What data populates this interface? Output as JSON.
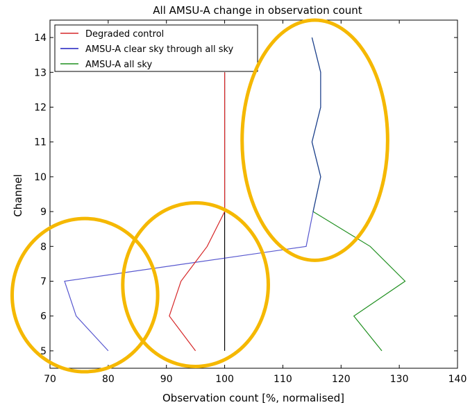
{
  "chart_data": {
    "type": "line",
    "title": "All AMSU-A change in observation count",
    "xlabel": "Observation count [%, normalised]",
    "ylabel": "Channel",
    "xlim": [
      70,
      140
    ],
    "ylim": [
      4.5,
      14.5
    ],
    "xticks": [
      70,
      80,
      90,
      100,
      110,
      120,
      130,
      140
    ],
    "yticks": [
      5,
      6,
      7,
      8,
      9,
      10,
      11,
      12,
      13,
      14
    ],
    "grid": false,
    "legend_position": "top-left",
    "reference_line": {
      "x": 100,
      "y_range": [
        5,
        13
      ],
      "color": "#000000"
    },
    "series": [
      {
        "name": "Degraded control",
        "color": "#d62728",
        "points": [
          [
            95,
            5
          ],
          [
            90.5,
            6
          ],
          [
            92.5,
            7
          ],
          [
            97,
            8
          ],
          [
            100,
            9
          ],
          [
            100,
            10
          ],
          [
            100,
            11
          ],
          [
            100,
            12
          ],
          [
            100,
            13
          ]
        ]
      },
      {
        "name": "AMSU-A clear sky through all sky",
        "color": "#1f1fbf",
        "points": [
          [
            80,
            5
          ],
          [
            74.5,
            6
          ],
          [
            72.5,
            7
          ],
          [
            114,
            8
          ],
          [
            115.2,
            9
          ],
          [
            116.5,
            10
          ],
          [
            115,
            11
          ],
          [
            116.5,
            12
          ],
          [
            116.5,
            13
          ],
          [
            115,
            14
          ]
        ]
      },
      {
        "name": "AMSU-A all sky",
        "color": "#1f8f1f",
        "points": [
          [
            127,
            5
          ],
          [
            122.2,
            6
          ],
          [
            131,
            7
          ],
          [
            125,
            8
          ],
          [
            115.2,
            9
          ],
          [
            116.5,
            10
          ],
          [
            115,
            11
          ],
          [
            116.5,
            12
          ],
          [
            116.5,
            13
          ],
          [
            115,
            14
          ]
        ]
      }
    ],
    "annotations": {
      "highlight_color": "#f5b800",
      "ellipses": [
        {
          "cx": 76,
          "cy": 6.6,
          "rx": 12.5,
          "ry": 2.2
        },
        {
          "cx": 95,
          "cy": 6.9,
          "rx": 12.5,
          "ry": 2.35
        },
        {
          "cx": 115.5,
          "cy": 11.05,
          "rx": 12.5,
          "ry": 3.45
        }
      ]
    }
  }
}
